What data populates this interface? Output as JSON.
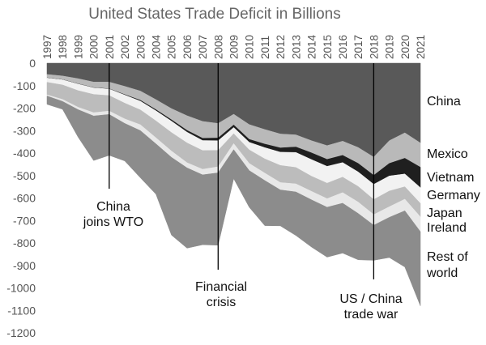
{
  "chart_data": {
    "type": "area",
    "stacked": true,
    "title": "United States Trade Deficit in Billions",
    "xlabel": "",
    "ylabel": "",
    "x": [
      1997,
      1998,
      1999,
      2000,
      2001,
      2002,
      2003,
      2004,
      2005,
      2006,
      2007,
      2008,
      2009,
      2010,
      2011,
      2012,
      2013,
      2014,
      2015,
      2016,
      2017,
      2018,
      2019,
      2020,
      2021
    ],
    "ylim": [
      -1200,
      0
    ],
    "yticks": [
      0,
      -100,
      -200,
      -300,
      -400,
      -500,
      -600,
      -700,
      -800,
      -900,
      -1000,
      -1100,
      -1200
    ],
    "x_tick_labels": [
      "1997",
      "1998",
      "1999",
      "2000",
      "2001",
      "2002",
      "2003",
      "2004",
      "2005",
      "2006",
      "2007",
      "2008",
      "2009",
      "2010",
      "2011",
      "2012",
      "2013",
      "2014",
      "2015",
      "2016",
      "2017",
      "2018",
      "2019",
      "2020",
      "2021"
    ],
    "legend_position": "right",
    "series": [
      {
        "name": "China",
        "color": "#595959",
        "values": [
          -50,
          -57,
          -69,
          -84,
          -84,
          -103,
          -124,
          -162,
          -202,
          -234,
          -259,
          -268,
          -227,
          -273,
          -295,
          -315,
          -319,
          -345,
          -367,
          -347,
          -375,
          -418,
          -345,
          -310,
          -355
        ]
      },
      {
        "name": "Mexico",
        "color": "#b9b9b9",
        "values": [
          -15,
          -16,
          -23,
          -25,
          -30,
          -37,
          -41,
          -45,
          -50,
          -65,
          -75,
          -65,
          -48,
          -66,
          -65,
          -62,
          -54,
          -54,
          -61,
          -63,
          -71,
          -81,
          -101,
          -113,
          -108
        ]
      },
      {
        "name": "Vietnam",
        "color": "#1f1f1f",
        "values": [
          -1,
          -1,
          -1,
          -1,
          -1,
          -2,
          -4,
          -5,
          -6,
          -8,
          -10,
          -12,
          -11,
          -13,
          -16,
          -19,
          -24,
          -30,
          -31,
          -32,
          -38,
          -40,
          -56,
          -70,
          -91
        ]
      },
      {
        "name": "Germany",
        "color": "#f2f2f2",
        "values": [
          -19,
          -23,
          -29,
          -29,
          -29,
          -36,
          -39,
          -45,
          -51,
          -48,
          -45,
          -43,
          -28,
          -34,
          -50,
          -59,
          -67,
          -74,
          -75,
          -65,
          -65,
          -68,
          -67,
          -57,
          -70
        ]
      },
      {
        "name": "Japan",
        "color": "#bcbcbc",
        "values": [
          -56,
          -64,
          -74,
          -81,
          -69,
          -70,
          -66,
          -75,
          -82,
          -88,
          -83,
          -73,
          -44,
          -60,
          -63,
          -76,
          -73,
          -67,
          -69,
          -69,
          -69,
          -67,
          -70,
          -55,
          -60
        ]
      },
      {
        "name": "Ireland",
        "color": "#e8e8e8",
        "values": [
          -5,
          -9,
          -11,
          -15,
          -15,
          -20,
          -26,
          -27,
          -28,
          -23,
          -25,
          -27,
          -27,
          -32,
          -33,
          -33,
          -36,
          -38,
          -38,
          -47,
          -51,
          -47,
          -47,
          -52,
          -66
        ]
      },
      {
        "name": "Rest of\nworld",
        "color": "#8c8c8c",
        "values": [
          -37,
          -35,
          -122,
          -198,
          -182,
          -167,
          -210,
          -224,
          -346,
          -357,
          -311,
          -322,
          -129,
          -163,
          -201,
          -160,
          -194,
          -210,
          -222,
          -222,
          -206,
          -156,
          -179,
          -250,
          -330
        ]
      }
    ],
    "annotations": [
      {
        "year": 2001,
        "label": "China\njoins WTO"
      },
      {
        "year": 2008,
        "label": "Financial\ncrisis"
      },
      {
        "year": 2018,
        "label": "US / China\ntrade war"
      }
    ]
  }
}
